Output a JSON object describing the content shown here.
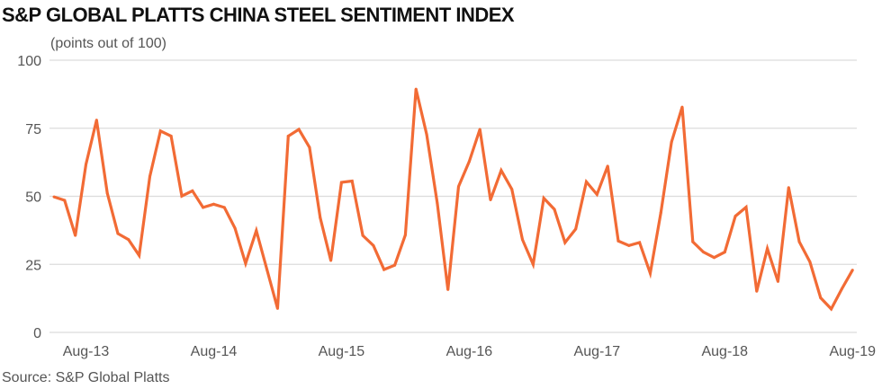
{
  "chart_data": {
    "type": "line",
    "title": "S&P GLOBAL PLATTS CHINA STEEL SENTIMENT INDEX",
    "subtitle": "(points out of 100)",
    "source": "Source: S&P Global Platts",
    "xlabel": "",
    "ylabel": "",
    "ylim": [
      0,
      100
    ],
    "yticks": [
      "0",
      "25",
      "50",
      "75",
      "100"
    ],
    "ytick_values": [
      0,
      25,
      50,
      75,
      100
    ],
    "x_start": "May-13",
    "xticks": [
      {
        "label": "Aug-13",
        "index": 3
      },
      {
        "label": "Aug-14",
        "index": 15
      },
      {
        "label": "Aug-15",
        "index": 27
      },
      {
        "label": "Aug-16",
        "index": 39
      },
      {
        "label": "Aug-17",
        "index": 51
      },
      {
        "label": "Aug-18",
        "index": 63
      },
      {
        "label": "Aug-19",
        "index": 75
      }
    ],
    "grid": true,
    "legend": "none",
    "series": [
      {
        "name": "China Steel Sentiment Index",
        "color": "#F26B35",
        "values": [
          49.8,
          48.5,
          35.6,
          61.7,
          78,
          51.2,
          36.3,
          34.1,
          28.3,
          57.3,
          74,
          72.1,
          50.1,
          52,
          45.9,
          47.1,
          45.9,
          38.3,
          25.3,
          37.4,
          23.1,
          8.8,
          72.1,
          74.6,
          68,
          42.1,
          26.4,
          55.1,
          55.6,
          35.6,
          31.9,
          23.1,
          24.7,
          35.8,
          89.4,
          72.7,
          47.4,
          15.7,
          53.6,
          62.8,
          74.6,
          48.7,
          59.5,
          52.6,
          34.1,
          25,
          49.3,
          45.2,
          33,
          38,
          55.3,
          50.7,
          61.1,
          33.6,
          31.9,
          33,
          21.7,
          44,
          69.9,
          82.8,
          33.3,
          29.5,
          27.5,
          29.5,
          42.7,
          46,
          15.1,
          30.8,
          18.7,
          53.2,
          33.3,
          25.9,
          12.7,
          8.6,
          16,
          22.9
        ]
      }
    ]
  }
}
